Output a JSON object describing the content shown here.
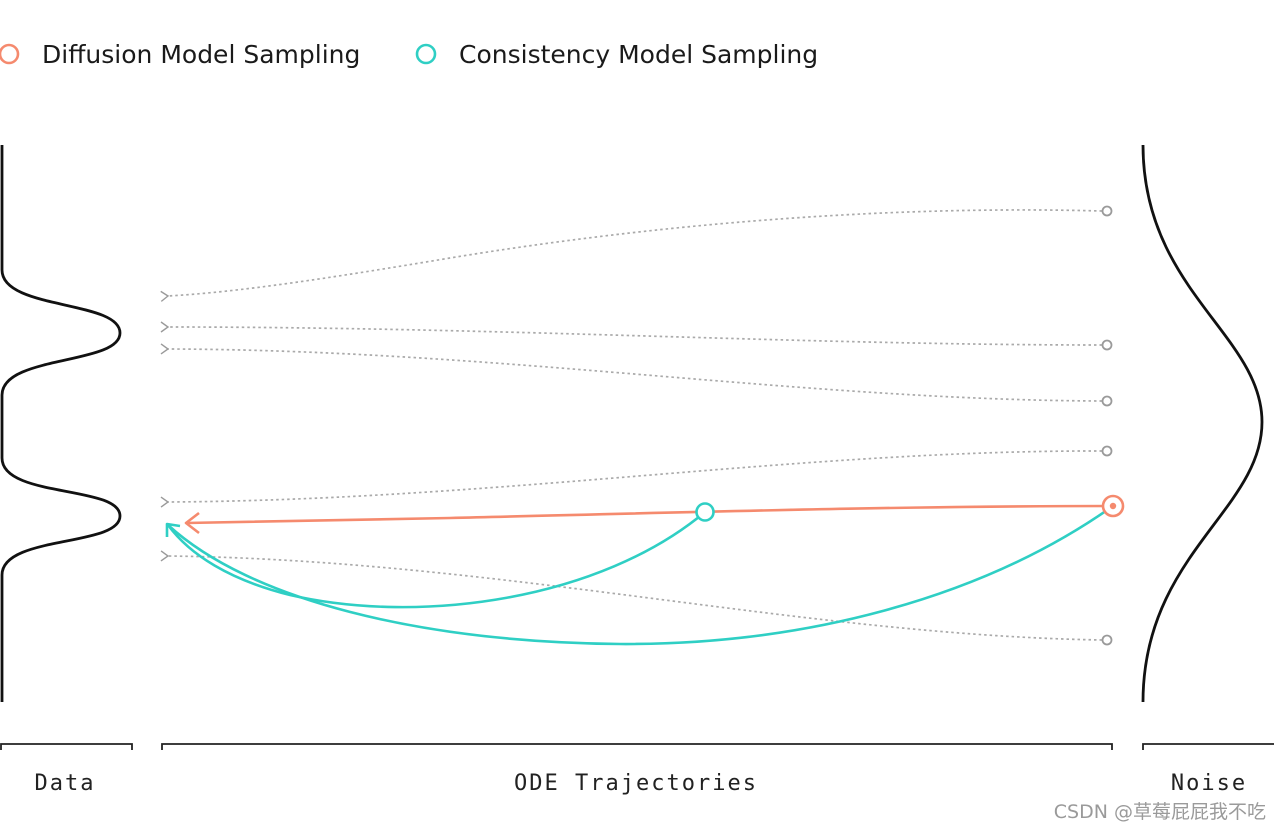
{
  "legend": {
    "diffusion_label": "Diffusion Model Sampling",
    "consistency_label": "Consistency Model Sampling"
  },
  "axis": {
    "data_label": "Data",
    "ode_label": "ODE Trajectories",
    "noise_label": "Noise"
  },
  "watermark": "CSDN @草莓屁屁我不吃",
  "colors": {
    "diffusion": "#f58a6e",
    "consistency": "#2fcfc4",
    "trajectory": "#aaaaaa",
    "curve": "#111111"
  }
}
